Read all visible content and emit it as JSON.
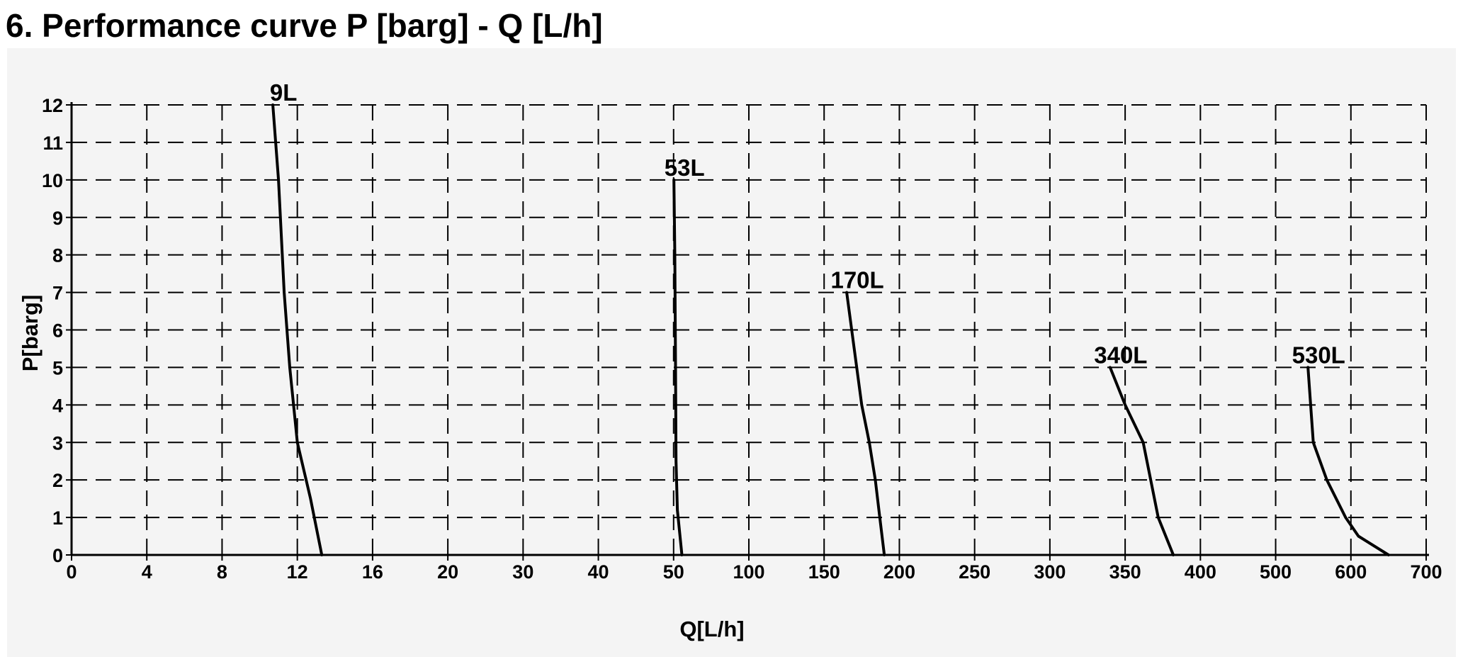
{
  "page": {
    "title": "6.  Performance curve P [barg] - Q [L/h]"
  },
  "chart_data": {
    "type": "line",
    "title": "",
    "xlabel": "Q[L/h]",
    "ylabel": "P[barg]",
    "x_scale": "piecewise-categorical",
    "x_tick_labels": [
      "0",
      "4",
      "8",
      "12",
      "16",
      "20",
      "30",
      "40",
      "50",
      "100",
      "150",
      "200",
      "250",
      "300",
      "350",
      "400",
      "500",
      "600",
      "700"
    ],
    "y_tick_labels": [
      "0",
      "1",
      "2",
      "3",
      "4",
      "5",
      "6",
      "7",
      "8",
      "9",
      "10",
      "11",
      "12"
    ],
    "ylim": [
      0,
      12
    ],
    "grid": true,
    "grid_style": "dashed",
    "legend": "none",
    "series": [
      {
        "name": "9L",
        "points": [
          {
            "x": 10.7,
            "y": 12
          },
          {
            "x": 11.0,
            "y": 10
          },
          {
            "x": 11.3,
            "y": 7
          },
          {
            "x": 11.6,
            "y": 5
          },
          {
            "x": 12.0,
            "y": 3
          },
          {
            "x": 12.7,
            "y": 1.5
          },
          {
            "x": 13.3,
            "y": 0
          }
        ]
      },
      {
        "name": "53L",
        "points": [
          {
            "x": 50.2,
            "y": 10
          },
          {
            "x": 50.8,
            "y": 8
          },
          {
            "x": 51.3,
            "y": 5
          },
          {
            "x": 51.6,
            "y": 2.5
          },
          {
            "x": 52.5,
            "y": 1.2
          },
          {
            "x": 55.5,
            "y": 0
          }
        ]
      },
      {
        "name": "170L",
        "points": [
          {
            "x": 165,
            "y": 7
          },
          {
            "x": 170,
            "y": 5.5
          },
          {
            "x": 175,
            "y": 4
          },
          {
            "x": 180,
            "y": 3
          },
          {
            "x": 184,
            "y": 2
          },
          {
            "x": 187,
            "y": 1
          },
          {
            "x": 190,
            "y": 0
          }
        ]
      },
      {
        "name": "340L",
        "points": [
          {
            "x": 340,
            "y": 5
          },
          {
            "x": 350,
            "y": 4
          },
          {
            "x": 362,
            "y": 3
          },
          {
            "x": 367,
            "y": 2
          },
          {
            "x": 372,
            "y": 1
          },
          {
            "x": 382,
            "y": 0
          }
        ]
      },
      {
        "name": "530L",
        "points": [
          {
            "x": 543,
            "y": 5
          },
          {
            "x": 550,
            "y": 3
          },
          {
            "x": 568,
            "y": 2
          },
          {
            "x": 593,
            "y": 1
          },
          {
            "x": 610,
            "y": 0.5
          },
          {
            "x": 650,
            "y": 0
          }
        ]
      }
    ]
  }
}
